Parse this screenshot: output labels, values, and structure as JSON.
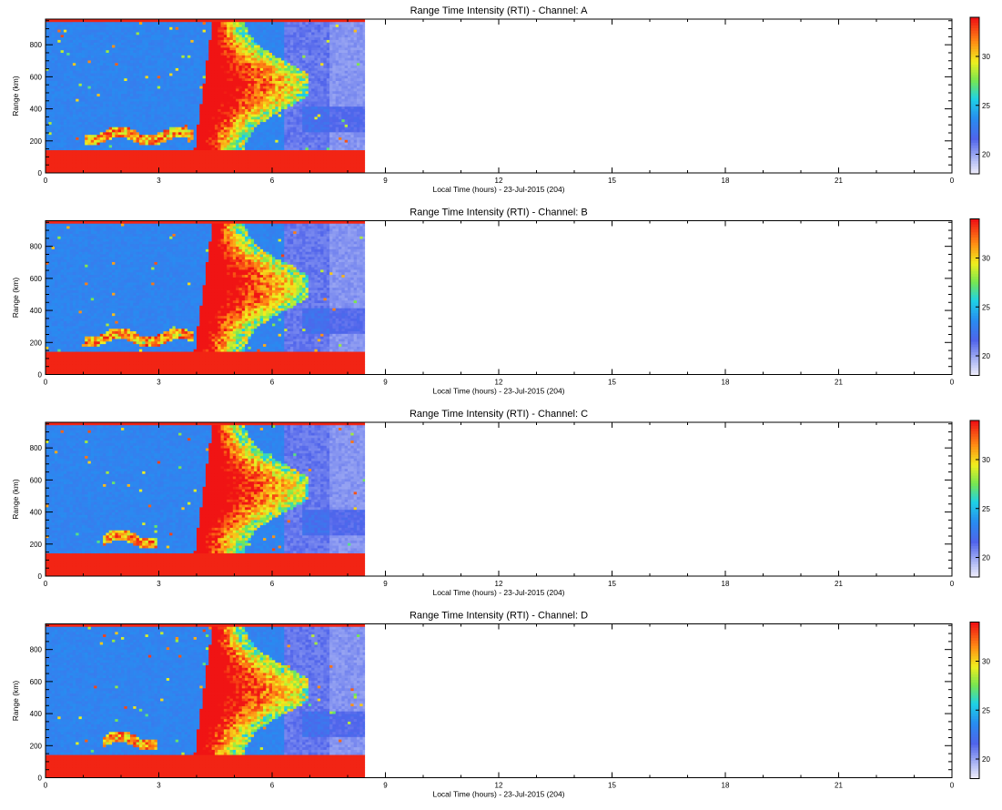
{
  "chart_data": [
    {
      "type": "heatmap",
      "title": "Range Time Intensity (RTI) - Channel: A",
      "xlabel": "Local Time (hours) - 23-Jul-2015 (204)",
      "ylabel": "Range (km)",
      "xlim": [
        0,
        24
      ],
      "ylim": [
        0,
        960
      ],
      "x_ticks": [
        "0",
        "3",
        "6",
        "9",
        "12",
        "15",
        "18",
        "21",
        "0"
      ],
      "y_ticks": [
        0,
        200,
        400,
        600,
        800
      ],
      "colorbar": {
        "ticks": [
          20,
          25,
          30
        ],
        "range": [
          18,
          34
        ]
      },
      "data_extent_hours": [
        0,
        8.45
      ],
      "features": {
        "ground_clutter_range_km": [
          0,
          145
        ],
        "top_band_range_km": [
          940,
          960
        ],
        "spread_f_region": {
          "time_start_h": 3.95,
          "time_end_h": 7.0,
          "range_km": [
            150,
            960
          ]
        },
        "echo_band": {
          "time_start_h": 1.0,
          "time_end_h": 3.9,
          "range_km": [
            180,
            300
          ]
        }
      }
    },
    {
      "type": "heatmap",
      "title": "Range Time Intensity (RTI) - Channel: B",
      "xlabel": "Local Time (hours) - 23-Jul-2015 (204)",
      "ylabel": "Range (km)",
      "xlim": [
        0,
        24
      ],
      "ylim": [
        0,
        960
      ],
      "x_ticks": [
        "0",
        "3",
        "6",
        "9",
        "12",
        "15",
        "18",
        "21",
        "0"
      ],
      "y_ticks": [
        0,
        200,
        400,
        600,
        800
      ],
      "colorbar": {
        "ticks": [
          20,
          25,
          30
        ],
        "range": [
          18,
          34
        ]
      },
      "data_extent_hours": [
        0,
        8.45
      ],
      "features": {
        "ground_clutter_range_km": [
          0,
          145
        ],
        "top_band_range_km": [
          940,
          960
        ],
        "spread_f_region": {
          "time_start_h": 3.95,
          "time_end_h": 7.0,
          "range_km": [
            150,
            960
          ]
        },
        "echo_band": {
          "time_start_h": 1.0,
          "time_end_h": 3.9,
          "range_km": [
            180,
            300
          ]
        }
      }
    },
    {
      "type": "heatmap",
      "title": "Range Time Intensity (RTI) - Channel: C",
      "xlabel": "Local Time (hours) - 23-Jul-2015 (204)",
      "ylabel": "Range (km)",
      "xlim": [
        0,
        24
      ],
      "ylim": [
        0,
        960
      ],
      "x_ticks": [
        "0",
        "3",
        "6",
        "9",
        "12",
        "15",
        "18",
        "21",
        "0"
      ],
      "y_ticks": [
        0,
        200,
        400,
        600,
        800
      ],
      "colorbar": {
        "ticks": [
          20,
          25,
          30
        ],
        "range": [
          18,
          34
        ]
      },
      "data_extent_hours": [
        0,
        8.45
      ],
      "features": {
        "ground_clutter_range_km": [
          0,
          145
        ],
        "top_band_range_km": [
          940,
          960
        ],
        "spread_f_region": {
          "time_start_h": 3.95,
          "time_end_h": 7.0,
          "range_km": [
            150,
            960
          ]
        },
        "echo_band": {
          "time_start_h": 1.5,
          "time_end_h": 3.0,
          "range_km": [
            180,
            300
          ]
        }
      }
    },
    {
      "type": "heatmap",
      "title": "Range Time Intensity (RTI) - Channel: D",
      "xlabel": "Local Time (hours) - 23-Jul-2015 (204)",
      "ylabel": "Range (km)",
      "xlim": [
        0,
        24
      ],
      "ylim": [
        0,
        960
      ],
      "x_ticks": [
        "0",
        "3",
        "6",
        "9",
        "12",
        "15",
        "18",
        "21",
        "0"
      ],
      "y_ticks": [
        0,
        200,
        400,
        600,
        800
      ],
      "colorbar": {
        "ticks": [
          20,
          25,
          30
        ],
        "range": [
          18,
          34
        ]
      },
      "data_extent_hours": [
        0,
        8.45
      ],
      "features": {
        "ground_clutter_range_km": [
          0,
          145
        ],
        "top_band_range_km": [
          940,
          960
        ],
        "spread_f_region": {
          "time_start_h": 3.95,
          "time_end_h": 7.0,
          "range_km": [
            150,
            960
          ]
        },
        "echo_band": {
          "time_start_h": 1.5,
          "time_end_h": 3.0,
          "range_km": [
            180,
            300
          ]
        }
      }
    }
  ]
}
